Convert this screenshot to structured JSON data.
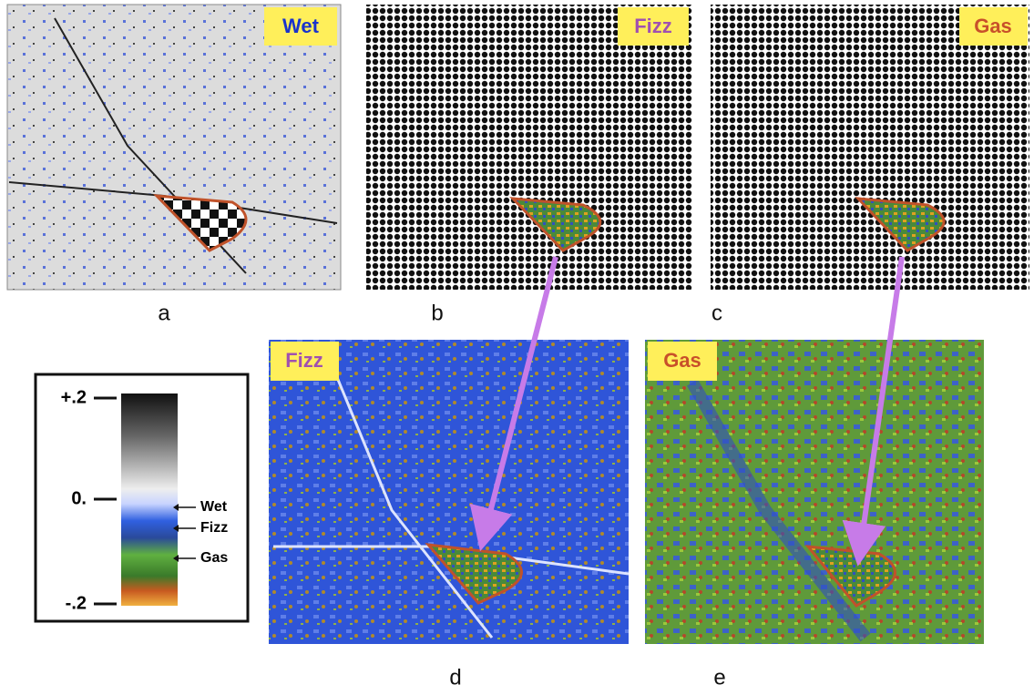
{
  "panels": [
    {
      "label": "a",
      "tag": "Wet"
    },
    {
      "label": "b",
      "tag": "Fizz"
    },
    {
      "label": "c",
      "tag": "Gas"
    },
    {
      "label": "d",
      "tag": "Fizz"
    },
    {
      "label": "e",
      "tag": "Gas"
    }
  ],
  "legend": {
    "ticks": [
      "+.2",
      "0.",
      "-.2"
    ],
    "classes": [
      "Wet",
      "Fizz",
      "Gas"
    ]
  }
}
